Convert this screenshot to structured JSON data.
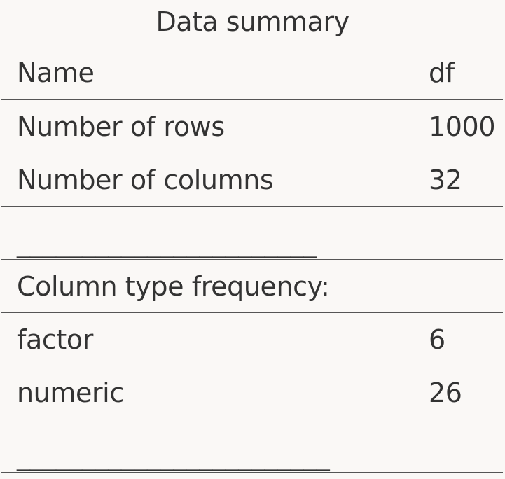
{
  "caption": "Data summary",
  "rows": [
    {
      "label": "Name",
      "value": "df"
    },
    {
      "label": "Number of rows",
      "value": "1000"
    },
    {
      "label": "Number of columns",
      "value": "32"
    },
    {
      "label": "_______________________",
      "value": ""
    },
    {
      "label": "Column type frequency:",
      "value": ""
    },
    {
      "label": "factor",
      "value": "6"
    },
    {
      "label": "numeric",
      "value": "26"
    },
    {
      "label": "________________________",
      "value": ""
    }
  ]
}
